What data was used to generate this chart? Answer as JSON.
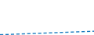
{
  "x": [
    0,
    1,
    2,
    3,
    4,
    5,
    6,
    7,
    8,
    9,
    10,
    11,
    12,
    13,
    14,
    15,
    16,
    17,
    18,
    19,
    20
  ],
  "y": [
    0.2,
    0.25,
    0.35,
    0.45,
    0.55,
    0.65,
    0.75,
    0.85,
    0.95,
    1.05,
    1.15,
    1.25,
    1.35,
    1.45,
    1.55,
    1.65,
    1.75,
    1.85,
    1.95,
    2.05,
    2.15
  ],
  "line_color": "#1a7bbf",
  "line_width": 1.0,
  "linestyle": "--",
  "background_color": "#ffffff",
  "ylim": [
    0,
    20
  ],
  "xlim": [
    0,
    20
  ]
}
